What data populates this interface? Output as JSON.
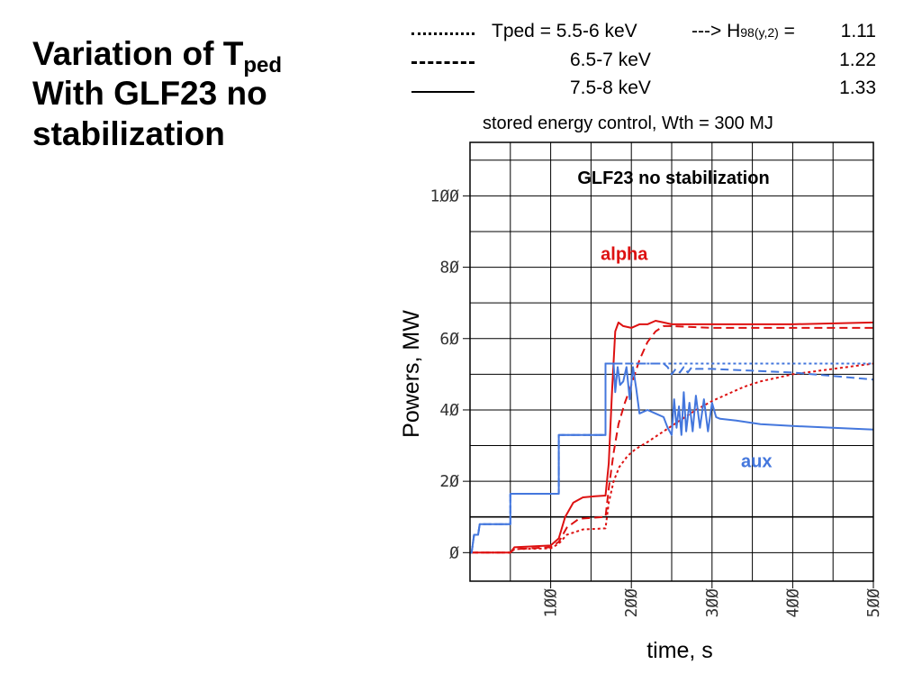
{
  "slide": {
    "title_main": "Variation of T",
    "title_sub": "ped",
    "title_line2": "With GLF23 no",
    "title_line3": "stabilization"
  },
  "legend": [
    {
      "style": "dotted",
      "label": "Tped = 5.5-6 keV",
      "h_value": "1.11"
    },
    {
      "style": "dashed",
      "label": "6.5-7 keV",
      "h_value": "1.22"
    },
    {
      "style": "solid",
      "label": "7.5-8 keV",
      "h_value": "1.33"
    }
  ],
  "legend_h": {
    "arrow": "---> H",
    "sub": "98(y,2)",
    "eq": " = "
  },
  "chart_data": {
    "type": "line",
    "title": "GLF23 no stabilization",
    "subtitle": "stored energy control, Wth = 300 MJ",
    "xlabel": "time, s",
    "ylabel": "Powers, MW",
    "xlim": [
      0,
      500
    ],
    "ylim": [
      -8,
      115
    ],
    "xticks": [
      100,
      200,
      300,
      400,
      500
    ],
    "xtick_labels": [
      "1ØØ",
      "2ØØ",
      "3ØØ",
      "4ØØ",
      "5ØØ"
    ],
    "yticks": [
      0,
      20,
      40,
      60,
      80,
      100
    ],
    "ytick_labels": [
      "Ø",
      "2Ø",
      "4Ø",
      "6Ø",
      "8Ø",
      "1ØØ"
    ],
    "grid": true,
    "annotations": [
      {
        "text": "alpha",
        "x": 162,
        "y": 82,
        "color": "#dd1111"
      },
      {
        "text": "aux",
        "x": 336,
        "y": 24,
        "color": "#4477dd"
      }
    ],
    "colors": {
      "alpha": "#dd1111",
      "aux": "#4477dd"
    },
    "series": [
      {
        "name": "alpha",
        "color": "#dd1111",
        "dash": "solid",
        "points": [
          [
            0,
            0
          ],
          [
            50,
            0
          ],
          [
            55,
            1.5
          ],
          [
            100,
            2
          ],
          [
            110,
            4
          ],
          [
            118,
            10
          ],
          [
            128,
            14
          ],
          [
            140,
            15.5
          ],
          [
            155,
            15.8
          ],
          [
            168,
            16
          ],
          [
            172,
            25
          ],
          [
            176,
            45
          ],
          [
            180,
            62
          ],
          [
            184,
            64.5
          ],
          [
            190,
            63.5
          ],
          [
            200,
            63
          ],
          [
            210,
            64
          ],
          [
            220,
            64
          ],
          [
            230,
            65
          ],
          [
            240,
            64.5
          ],
          [
            250,
            64
          ],
          [
            300,
            64
          ],
          [
            400,
            64
          ],
          [
            500,
            64.5
          ]
        ]
      },
      {
        "name": "alpha",
        "color": "#dd1111",
        "dash": "dashed",
        "points": [
          [
            0,
            0
          ],
          [
            50,
            0
          ],
          [
            55,
            1
          ],
          [
            100,
            1.5
          ],
          [
            110,
            3
          ],
          [
            120,
            7
          ],
          [
            135,
            9.5
          ],
          [
            168,
            10
          ],
          [
            172,
            18
          ],
          [
            178,
            28
          ],
          [
            184,
            36
          ],
          [
            192,
            42
          ],
          [
            200,
            47
          ],
          [
            210,
            54
          ],
          [
            220,
            59
          ],
          [
            230,
            62
          ],
          [
            240,
            63.5
          ],
          [
            250,
            63.5
          ],
          [
            300,
            63
          ],
          [
            400,
            63
          ],
          [
            500,
            63
          ]
        ]
      },
      {
        "name": "alpha",
        "color": "#dd1111",
        "dash": "dotted",
        "points": [
          [
            0,
            0
          ],
          [
            50,
            0
          ],
          [
            55,
            1
          ],
          [
            100,
            1.2
          ],
          [
            110,
            2.5
          ],
          [
            120,
            5
          ],
          [
            140,
            6.5
          ],
          [
            168,
            6.8
          ],
          [
            172,
            14
          ],
          [
            178,
            20
          ],
          [
            185,
            24
          ],
          [
            195,
            27
          ],
          [
            205,
            29
          ],
          [
            220,
            31
          ],
          [
            240,
            34
          ],
          [
            260,
            37
          ],
          [
            280,
            40
          ],
          [
            300,
            42.5
          ],
          [
            320,
            44.5
          ],
          [
            340,
            46.5
          ],
          [
            360,
            48
          ],
          [
            400,
            50
          ],
          [
            450,
            51.5
          ],
          [
            500,
            53
          ]
        ]
      },
      {
        "name": "aux",
        "color": "#4477dd",
        "dash": "solid",
        "points": [
          [
            0,
            0
          ],
          [
            2,
            0
          ],
          [
            5,
            5
          ],
          [
            10,
            5
          ],
          [
            12,
            8
          ],
          [
            50,
            8
          ],
          [
            50,
            16.5
          ],
          [
            110,
            16.5
          ],
          [
            110,
            33
          ],
          [
            168,
            33
          ],
          [
            168,
            53
          ],
          [
            178,
            53
          ],
          [
            180,
            45
          ],
          [
            183,
            52
          ],
          [
            186,
            47
          ],
          [
            190,
            48
          ],
          [
            194,
            52
          ],
          [
            198,
            43
          ],
          [
            202,
            52
          ],
          [
            206,
            46
          ],
          [
            210,
            39
          ],
          [
            220,
            40
          ],
          [
            230,
            39
          ],
          [
            240,
            38
          ],
          [
            245,
            35
          ],
          [
            250,
            33
          ],
          [
            253,
            43
          ],
          [
            256,
            35
          ],
          [
            259,
            41
          ],
          [
            262,
            33
          ],
          [
            265,
            45
          ],
          [
            268,
            34
          ],
          [
            272,
            42
          ],
          [
            276,
            34
          ],
          [
            280,
            44
          ],
          [
            285,
            35
          ],
          [
            290,
            43
          ],
          [
            295,
            34
          ],
          [
            300,
            42
          ],
          [
            305,
            38
          ],
          [
            310,
            37.5
          ],
          [
            330,
            37
          ],
          [
            360,
            36
          ],
          [
            400,
            35.5
          ],
          [
            450,
            35
          ],
          [
            500,
            34.5
          ]
        ]
      },
      {
        "name": "aux",
        "color": "#4477dd",
        "dash": "dashed",
        "points": [
          [
            0,
            0
          ],
          [
            2,
            0
          ],
          [
            5,
            5
          ],
          [
            10,
            5
          ],
          [
            12,
            8
          ],
          [
            50,
            8
          ],
          [
            50,
            16.5
          ],
          [
            110,
            16.5
          ],
          [
            110,
            33
          ],
          [
            168,
            33
          ],
          [
            168,
            53
          ],
          [
            240,
            53
          ],
          [
            245,
            52
          ],
          [
            250,
            50
          ],
          [
            255,
            51.5
          ],
          [
            260,
            50.5
          ],
          [
            265,
            52
          ],
          [
            270,
            50.5
          ],
          [
            275,
            52
          ],
          [
            280,
            51.5
          ],
          [
            300,
            51.5
          ],
          [
            350,
            51
          ],
          [
            400,
            50.5
          ],
          [
            450,
            49.5
          ],
          [
            500,
            48.5
          ]
        ]
      },
      {
        "name": "aux",
        "color": "#4477dd",
        "dash": "dotted",
        "points": [
          [
            0,
            0
          ],
          [
            2,
            0
          ],
          [
            5,
            5
          ],
          [
            10,
            5
          ],
          [
            12,
            8
          ],
          [
            50,
            8
          ],
          [
            50,
            16.5
          ],
          [
            110,
            16.5
          ],
          [
            110,
            33
          ],
          [
            168,
            33
          ],
          [
            168,
            53
          ],
          [
            500,
            53
          ]
        ]
      }
    ]
  }
}
